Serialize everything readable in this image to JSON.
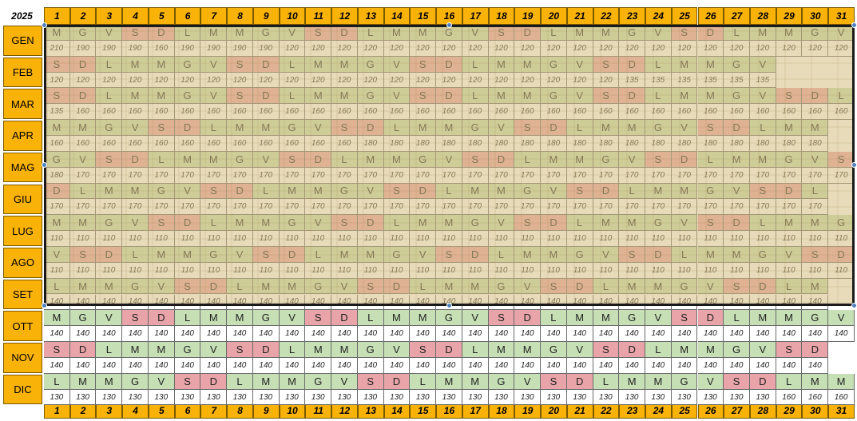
{
  "year": "2025",
  "days": [
    "1",
    "2",
    "3",
    "4",
    "5",
    "6",
    "7",
    "8",
    "9",
    "10",
    "11",
    "12",
    "13",
    "14",
    "15",
    "16",
    "17",
    "18",
    "19",
    "20",
    "21",
    "22",
    "23",
    "24",
    "25",
    "26",
    "27",
    "28",
    "29",
    "30",
    "31"
  ],
  "colors": {
    "weekday": "#c6dfb4",
    "weekend": "#e8a4a8",
    "header": "#f9b208"
  },
  "months": [
    {
      "name": "GEN",
      "days": [
        "M",
        "G",
        "V",
        "S",
        "D",
        "L",
        "M",
        "M",
        "G",
        "V",
        "S",
        "D",
        "L",
        "M",
        "M",
        "G",
        "V",
        "S",
        "D",
        "L",
        "M",
        "M",
        "G",
        "V",
        "S",
        "D",
        "L",
        "M",
        "M",
        "G",
        "V"
      ],
      "values": [
        "210",
        "190",
        "190",
        "190",
        "160",
        "190",
        "190",
        "190",
        "190",
        "120",
        "120",
        "120",
        "120",
        "120",
        "120",
        "120",
        "120",
        "120",
        "120",
        "120",
        "120",
        "120",
        "120",
        "120",
        "120",
        "120",
        "120",
        "120",
        "120",
        "120",
        "120"
      ]
    },
    {
      "name": "FEB",
      "days": [
        "S",
        "D",
        "L",
        "M",
        "M",
        "G",
        "V",
        "S",
        "D",
        "L",
        "M",
        "M",
        "G",
        "V",
        "S",
        "D",
        "L",
        "M",
        "M",
        "G",
        "V",
        "S",
        "D",
        "L",
        "M",
        "M",
        "G",
        "V"
      ],
      "values": [
        "120",
        "120",
        "120",
        "120",
        "120",
        "120",
        "120",
        "120",
        "120",
        "120",
        "120",
        "120",
        "120",
        "120",
        "120",
        "120",
        "120",
        "120",
        "120",
        "120",
        "120",
        "120",
        "135",
        "135",
        "135",
        "135",
        "135",
        "135"
      ]
    },
    {
      "name": "MAR",
      "days": [
        "S",
        "D",
        "L",
        "M",
        "M",
        "G",
        "V",
        "S",
        "D",
        "L",
        "M",
        "M",
        "G",
        "V",
        "S",
        "D",
        "L",
        "M",
        "M",
        "G",
        "V",
        "S",
        "D",
        "L",
        "M",
        "M",
        "G",
        "V",
        "S",
        "D",
        "L"
      ],
      "values": [
        "135",
        "160",
        "160",
        "160",
        "160",
        "160",
        "160",
        "160",
        "160",
        "160",
        "160",
        "160",
        "160",
        "160",
        "160",
        "160",
        "160",
        "160",
        "160",
        "160",
        "160",
        "160",
        "160",
        "160",
        "160",
        "160",
        "160",
        "160",
        "160",
        "160",
        "160"
      ]
    },
    {
      "name": "APR",
      "days": [
        "M",
        "M",
        "G",
        "V",
        "S",
        "D",
        "L",
        "M",
        "M",
        "G",
        "V",
        "S",
        "D",
        "L",
        "M",
        "M",
        "G",
        "V",
        "S",
        "D",
        "L",
        "M",
        "M",
        "G",
        "V",
        "S",
        "D",
        "L",
        "M",
        "M"
      ],
      "values": [
        "160",
        "160",
        "160",
        "160",
        "160",
        "160",
        "160",
        "160",
        "160",
        "160",
        "160",
        "160",
        "180",
        "180",
        "180",
        "180",
        "180",
        "180",
        "180",
        "180",
        "180",
        "180",
        "180",
        "180",
        "180",
        "180",
        "180",
        "180",
        "180",
        "180"
      ]
    },
    {
      "name": "MAG",
      "days": [
        "G",
        "V",
        "S",
        "D",
        "L",
        "M",
        "M",
        "G",
        "V",
        "S",
        "D",
        "L",
        "M",
        "M",
        "G",
        "V",
        "S",
        "D",
        "L",
        "M",
        "M",
        "G",
        "V",
        "S",
        "D",
        "L",
        "M",
        "M",
        "G",
        "V",
        "S"
      ],
      "values": [
        "180",
        "170",
        "170",
        "170",
        "170",
        "170",
        "170",
        "170",
        "170",
        "170",
        "170",
        "170",
        "170",
        "170",
        "170",
        "170",
        "170",
        "170",
        "170",
        "170",
        "170",
        "170",
        "170",
        "170",
        "170",
        "170",
        "170",
        "170",
        "170",
        "170",
        "170"
      ]
    },
    {
      "name": "GIU",
      "days": [
        "D",
        "L",
        "M",
        "M",
        "G",
        "V",
        "S",
        "D",
        "L",
        "M",
        "M",
        "G",
        "V",
        "S",
        "D",
        "L",
        "M",
        "M",
        "G",
        "V",
        "S",
        "D",
        "L",
        "M",
        "M",
        "G",
        "V",
        "S",
        "D",
        "L"
      ],
      "values": [
        "170",
        "170",
        "170",
        "170",
        "170",
        "170",
        "170",
        "170",
        "170",
        "170",
        "170",
        "170",
        "170",
        "170",
        "170",
        "170",
        "170",
        "170",
        "170",
        "170",
        "170",
        "170",
        "170",
        "170",
        "170",
        "170",
        "170",
        "170",
        "170",
        "170"
      ]
    },
    {
      "name": "LUG",
      "days": [
        "M",
        "M",
        "G",
        "V",
        "S",
        "D",
        "L",
        "M",
        "M",
        "G",
        "V",
        "S",
        "D",
        "L",
        "M",
        "M",
        "G",
        "V",
        "S",
        "D",
        "L",
        "M",
        "M",
        "G",
        "V",
        "S",
        "D",
        "L",
        "M",
        "M",
        "G"
      ],
      "values": [
        "110",
        "110",
        "110",
        "110",
        "110",
        "110",
        "110",
        "110",
        "110",
        "110",
        "110",
        "110",
        "110",
        "110",
        "110",
        "110",
        "110",
        "110",
        "110",
        "110",
        "110",
        "110",
        "110",
        "110",
        "110",
        "110",
        "110",
        "110",
        "110",
        "110",
        "110"
      ]
    },
    {
      "name": "AGO",
      "days": [
        "V",
        "S",
        "D",
        "L",
        "M",
        "M",
        "G",
        "V",
        "S",
        "D",
        "L",
        "M",
        "M",
        "G",
        "V",
        "S",
        "D",
        "L",
        "M",
        "M",
        "G",
        "V",
        "S",
        "D",
        "L",
        "M",
        "M",
        "G",
        "V",
        "S",
        "D"
      ],
      "values": [
        "110",
        "110",
        "110",
        "110",
        "110",
        "110",
        "110",
        "110",
        "110",
        "110",
        "110",
        "110",
        "110",
        "110",
        "110",
        "110",
        "110",
        "110",
        "110",
        "110",
        "110",
        "110",
        "110",
        "110",
        "110",
        "110",
        "110",
        "110",
        "110",
        "110",
        "110"
      ]
    },
    {
      "name": "SET",
      "days": [
        "L",
        "M",
        "M",
        "G",
        "V",
        "S",
        "D",
        "L",
        "M",
        "M",
        "G",
        "V",
        "S",
        "D",
        "L",
        "M",
        "M",
        "G",
        "V",
        "S",
        "D",
        "L",
        "M",
        "M",
        "G",
        "V",
        "S",
        "D",
        "L",
        "M"
      ],
      "values": [
        "140",
        "140",
        "140",
        "140",
        "140",
        "140",
        "140",
        "140",
        "140",
        "140",
        "140",
        "140",
        "140",
        "140",
        "140",
        "140",
        "140",
        "140",
        "140",
        "140",
        "140",
        "140",
        "140",
        "140",
        "140",
        "140",
        "140",
        "140",
        "140",
        "140"
      ]
    },
    {
      "name": "OTT",
      "days": [
        "M",
        "G",
        "V",
        "S",
        "D",
        "L",
        "M",
        "M",
        "G",
        "V",
        "S",
        "D",
        "L",
        "M",
        "M",
        "G",
        "V",
        "S",
        "D",
        "L",
        "M",
        "M",
        "G",
        "V",
        "S",
        "D",
        "L",
        "M",
        "M",
        "G",
        "V"
      ],
      "values": [
        "140",
        "140",
        "140",
        "140",
        "140",
        "140",
        "140",
        "140",
        "140",
        "140",
        "140",
        "140",
        "140",
        "140",
        "140",
        "140",
        "140",
        "140",
        "140",
        "140",
        "140",
        "140",
        "140",
        "140",
        "140",
        "140",
        "140",
        "140",
        "140",
        "140",
        "140"
      ]
    },
    {
      "name": "NOV",
      "days": [
        "S",
        "D",
        "L",
        "M",
        "M",
        "G",
        "V",
        "S",
        "D",
        "L",
        "M",
        "M",
        "G",
        "V",
        "S",
        "D",
        "L",
        "M",
        "M",
        "G",
        "V",
        "S",
        "D",
        "L",
        "M",
        "M",
        "G",
        "V",
        "S",
        "D"
      ],
      "values": [
        "140",
        "140",
        "140",
        "140",
        "140",
        "140",
        "140",
        "140",
        "140",
        "140",
        "140",
        "140",
        "140",
        "140",
        "140",
        "140",
        "140",
        "140",
        "140",
        "140",
        "140",
        "140",
        "140",
        "140",
        "140",
        "140",
        "140",
        "140",
        "140",
        "140"
      ]
    },
    {
      "name": "DIC",
      "days": [
        "L",
        "M",
        "M",
        "G",
        "V",
        "S",
        "D",
        "L",
        "M",
        "M",
        "G",
        "V",
        "S",
        "D",
        "L",
        "M",
        "M",
        "G",
        "V",
        "S",
        "D",
        "L",
        "M",
        "M",
        "G",
        "V",
        "S",
        "D",
        "L",
        "M",
        "M"
      ],
      "values": [
        "130",
        "130",
        "130",
        "130",
        "130",
        "130",
        "130",
        "130",
        "130",
        "130",
        "130",
        "130",
        "130",
        "130",
        "130",
        "130",
        "130",
        "130",
        "130",
        "130",
        "130",
        "130",
        "130",
        "130",
        "130",
        "130",
        "130",
        "130",
        "160",
        "160",
        "160"
      ]
    }
  ]
}
